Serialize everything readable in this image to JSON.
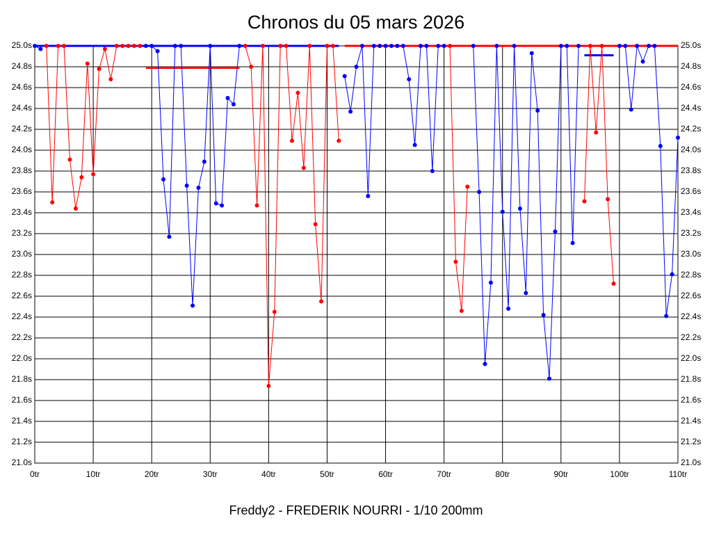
{
  "chart_data": {
    "type": "line",
    "title": "Chronos du 05 mars 2026",
    "x_label": "Freddy2 - FREDERIK NOURRI - 1/10 200mm",
    "xlim": [
      0,
      110
    ],
    "ylim": [
      21.0,
      25.0
    ],
    "grid": true,
    "right_axis_labels": true,
    "xticks": [
      {
        "value": 0,
        "label": "0tr"
      },
      {
        "value": 10,
        "label": "10tr"
      },
      {
        "value": 20,
        "label": "20tr"
      },
      {
        "value": 30,
        "label": "30tr"
      },
      {
        "value": 40,
        "label": "40tr"
      },
      {
        "value": 50,
        "label": "50tr"
      },
      {
        "value": 60,
        "label": "60tr"
      },
      {
        "value": 70,
        "label": "70tr"
      },
      {
        "value": 80,
        "label": "80tr"
      },
      {
        "value": 90,
        "label": "90tr"
      },
      {
        "value": 100,
        "label": "100tr"
      },
      {
        "value": 110,
        "label": "110tr"
      }
    ],
    "yticks": [
      {
        "value": 21.0,
        "label": "21.0s"
      },
      {
        "value": 21.2,
        "label": "21.2s"
      },
      {
        "value": 21.4,
        "label": "21.4s"
      },
      {
        "value": 21.6,
        "label": "21.6s"
      },
      {
        "value": 21.8,
        "label": "21.8s"
      },
      {
        "value": 22.0,
        "label": "22.0s"
      },
      {
        "value": 22.2,
        "label": "22.2s"
      },
      {
        "value": 22.4,
        "label": "22.4s"
      },
      {
        "value": 22.6,
        "label": "22.6s"
      },
      {
        "value": 22.8,
        "label": "22.8s"
      },
      {
        "value": 23.0,
        "label": "23.0s"
      },
      {
        "value": 23.2,
        "label": "23.2s"
      },
      {
        "value": 23.4,
        "label": "23.4s"
      },
      {
        "value": 23.6,
        "label": "23.6s"
      },
      {
        "value": 23.8,
        "label": "23.8s"
      },
      {
        "value": 24.0,
        "label": "24.0s"
      },
      {
        "value": 24.2,
        "label": "24.2s"
      },
      {
        "value": 24.4,
        "label": "24.4s"
      },
      {
        "value": 24.6,
        "label": "24.6s"
      },
      {
        "value": 24.8,
        "label": "24.8s"
      },
      {
        "value": 25.0,
        "label": "25.0s"
      }
    ],
    "series": [
      {
        "color": "#0000ff",
        "x": [
          0,
          1
        ],
        "values": [
          25.0,
          24.97
        ]
      },
      {
        "color": "#ff0000",
        "x": [
          2,
          3,
          4,
          5,
          6,
          7,
          8,
          9,
          10,
          11,
          12,
          13,
          14,
          15,
          16,
          17,
          18
        ],
        "values": [
          25.0,
          23.5,
          25.0,
          25.0,
          23.91,
          23.44,
          23.74,
          24.83,
          23.77,
          24.78,
          24.97,
          24.68,
          25.0,
          25.0,
          25.0,
          25.0,
          25.0
        ]
      },
      {
        "color": "#0000ff",
        "x": [
          19,
          20,
          21,
          22,
          23,
          24,
          25,
          26,
          27,
          28,
          29,
          30,
          31,
          32,
          33,
          34,
          35
        ],
        "values": [
          25.0,
          25.0,
          24.95,
          23.72,
          23.17,
          25.0,
          25.0,
          23.66,
          22.51,
          23.64,
          23.89,
          25.0,
          23.49,
          23.47,
          24.5,
          24.44,
          25.0
        ]
      },
      {
        "color": "#ff0000",
        "x": [
          36,
          37,
          38,
          39,
          40,
          41,
          42,
          43,
          44,
          45,
          46,
          47,
          48,
          49,
          50,
          51,
          52
        ],
        "values": [
          25.0,
          24.8,
          23.47,
          25.0,
          21.74,
          22.45,
          25.0,
          25.0,
          24.09,
          24.55,
          23.83,
          25.0,
          23.29,
          22.55,
          25.0,
          25.0,
          24.09
        ]
      },
      {
        "color": "#0000ff",
        "x": [
          53,
          54,
          55,
          56,
          57,
          58,
          59,
          60,
          61,
          62,
          63,
          64,
          65,
          66,
          67,
          68,
          69,
          70
        ],
        "values": [
          24.71,
          24.37,
          24.8,
          25.0,
          23.56,
          25.0,
          25.0,
          25.0,
          25.0,
          25.0,
          25.0,
          24.68,
          24.05,
          25.0,
          25.0,
          23.8,
          25.0,
          25.0
        ]
      },
      {
        "color": "#ff0000",
        "x": [
          71,
          72,
          73,
          74
        ],
        "values": [
          25.0,
          22.93,
          22.46,
          23.65
        ]
      },
      {
        "color": "#0000ff",
        "x": [
          75,
          76,
          77,
          78,
          79,
          80,
          81,
          82,
          83,
          84,
          85,
          86,
          87,
          88,
          89,
          90,
          91,
          92,
          93
        ],
        "values": [
          25.0,
          23.6,
          21.95,
          22.73,
          25.0,
          23.41,
          22.48,
          25.0,
          23.44,
          22.63,
          24.93,
          24.38,
          22.42,
          21.81,
          23.22,
          25.0,
          25.0,
          23.11,
          25.0
        ]
      },
      {
        "color": "#ff0000",
        "x": [
          94,
          95,
          96,
          97,
          98,
          99
        ],
        "values": [
          23.51,
          25.0,
          24.17,
          25.0,
          23.53,
          22.72
        ]
      },
      {
        "color": "#0000ff",
        "x": [
          100,
          101,
          102,
          103,
          104,
          105,
          106,
          107,
          108,
          109,
          110
        ],
        "values": [
          25.0,
          25.0,
          24.39,
          25.0,
          24.85,
          25.0,
          25.0,
          24.04,
          22.41,
          22.81,
          24.12
        ]
      }
    ],
    "ref_lines": [
      {
        "color": "#0000ff",
        "x": [
          0,
          52
        ],
        "value": 25.0
      },
      {
        "color": "#ff0000",
        "x": [
          53,
          110
        ],
        "value": 25.0
      },
      {
        "color": "#ff0000",
        "x": [
          19,
          35
        ],
        "value": 24.79
      },
      {
        "color": "#0000ff",
        "x": [
          94,
          99
        ],
        "value": 24.91
      }
    ]
  }
}
